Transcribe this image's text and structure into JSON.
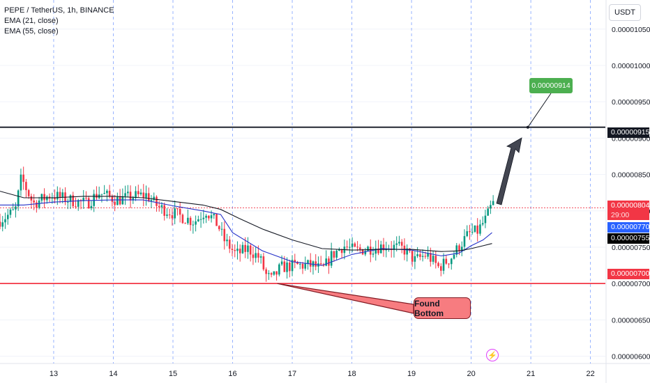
{
  "legend": {
    "symbol": "PEPE / TetherUS, 1h, BINANCE",
    "ema21": "EMA (21, close)",
    "ema55": "EMA (55, close)"
  },
  "currency_button": "USDT",
  "colors": {
    "up": "#089981",
    "down": "#f23645",
    "ema21": "#2632c9",
    "ema55": "#131722",
    "target": "#4caf50",
    "support": "#f23645",
    "resistance": "#131722",
    "grid_vertical": "#2962ff"
  },
  "chart_data": {
    "type": "line",
    "title": "PEPE / TetherUS, 1h, BINANCE",
    "x_ticks": [
      "13",
      "14",
      "15",
      "16",
      "17",
      "18",
      "19",
      "20",
      "21",
      "22"
    ],
    "y_ticks": [
      "0.00001050",
      "0.00001000",
      "0.00000950",
      "0.00000900",
      "0.00000850",
      "0.00000800",
      "0.00000750",
      "0.00000700",
      "0.00000650",
      "0.00000600"
    ],
    "y_tick_values": [
      1.05e-05,
      1e-05,
      9.5e-06,
      9e-06,
      8.5e-06,
      8e-06,
      7.5e-06,
      7e-06,
      6.5e-06,
      6e-06
    ],
    "x_range": [
      12.1,
      22.25
    ],
    "y_range": [
      5.9e-06,
      1.09e-05
    ],
    "price_path": [
      [
        12.1,
        7.85e-06
      ],
      [
        12.4,
        8e-06
      ],
      [
        12.5,
        8.45e-06
      ],
      [
        12.7,
        8.1e-06
      ],
      [
        13.0,
        8.22e-06
      ],
      [
        13.3,
        8.15e-06
      ],
      [
        13.6,
        8.1e-06
      ],
      [
        13.8,
        8.25e-06
      ],
      [
        14.1,
        8.15e-06
      ],
      [
        14.4,
        8.2e-06
      ],
      [
        14.6,
        8.22e-06
      ],
      [
        14.8,
        8.05e-06
      ],
      [
        15.1,
        7.95e-06
      ],
      [
        15.4,
        7.85e-06
      ],
      [
        15.6,
        8e-06
      ],
      [
        15.8,
        7.8e-06
      ],
      [
        15.9,
        7.6e-06
      ],
      [
        16.1,
        7.4e-06
      ],
      [
        16.3,
        7.48e-06
      ],
      [
        16.5,
        7.35e-06
      ],
      [
        16.6,
        7.12e-06
      ],
      [
        16.7,
        7.05e-06
      ],
      [
        16.85,
        7.22e-06
      ],
      [
        17.1,
        7.25e-06
      ],
      [
        17.4,
        7.25e-06
      ],
      [
        17.55,
        7.18e-06
      ],
      [
        17.7,
        7.38e-06
      ],
      [
        17.9,
        7.52e-06
      ],
      [
        18.1,
        7.45e-06
      ],
      [
        18.3,
        7.48e-06
      ],
      [
        18.6,
        7.52e-06
      ],
      [
        18.9,
        7.48e-06
      ],
      [
        19.1,
        7.32e-06
      ],
      [
        19.3,
        7.4e-06
      ],
      [
        19.5,
        7.22e-06
      ],
      [
        19.7,
        7.35e-06
      ],
      [
        19.85,
        7.52e-06
      ],
      [
        20.0,
        7.68e-06
      ],
      [
        20.15,
        7.72e-06
      ],
      [
        20.3,
        7.9e-06
      ],
      [
        20.4,
        8.1e-06
      ]
    ],
    "series": [
      {
        "name": "EMA (21, close)",
        "points": [
          [
            12.1,
            8.08e-06
          ],
          [
            12.5,
            8.08e-06
          ],
          [
            13.0,
            8.12e-06
          ],
          [
            13.5,
            8.14e-06
          ],
          [
            14.0,
            8.15e-06
          ],
          [
            14.5,
            8.15e-06
          ],
          [
            15.0,
            8.07e-06
          ],
          [
            15.5,
            8e-06
          ],
          [
            15.8,
            7.95e-06
          ],
          [
            16.0,
            7.7e-06
          ],
          [
            16.5,
            7.45e-06
          ],
          [
            17.0,
            7.3e-06
          ],
          [
            17.5,
            7.25e-06
          ],
          [
            18.0,
            7.4e-06
          ],
          [
            18.5,
            7.48e-06
          ],
          [
            19.0,
            7.46e-06
          ],
          [
            19.5,
            7.38e-06
          ],
          [
            19.8,
            7.42e-06
          ],
          [
            20.0,
            7.52e-06
          ],
          [
            20.2,
            7.6e-06
          ],
          [
            20.35,
            7.7e-06
          ]
        ]
      },
      {
        "name": "EMA (55, close)",
        "points": [
          [
            12.1,
            8.27e-06
          ],
          [
            12.5,
            8.18e-06
          ],
          [
            13.0,
            8.18e-06
          ],
          [
            13.5,
            8.2e-06
          ],
          [
            14.0,
            8.2e-06
          ],
          [
            14.5,
            8.18e-06
          ],
          [
            15.0,
            8.13e-06
          ],
          [
            15.5,
            8.08e-06
          ],
          [
            15.8,
            8.02e-06
          ],
          [
            16.1,
            7.9e-06
          ],
          [
            16.5,
            7.75e-06
          ],
          [
            17.0,
            7.6e-06
          ],
          [
            17.5,
            7.48e-06
          ],
          [
            18.0,
            7.46e-06
          ],
          [
            18.5,
            7.47e-06
          ],
          [
            19.0,
            7.47e-06
          ],
          [
            19.5,
            7.44e-06
          ],
          [
            19.8,
            7.45e-06
          ],
          [
            20.0,
            7.48e-06
          ],
          [
            20.2,
            7.52e-06
          ],
          [
            20.35,
            7.55e-06
          ]
        ]
      }
    ],
    "price_labels": {
      "current": "0.00000804",
      "countdown": "29:00",
      "ema21": "0.00000770",
      "ema55": "0.00000755",
      "support": "0.00000700",
      "resistance": "0.00000915"
    },
    "current_value": 8.04e-06,
    "ema21_value": 7.7e-06,
    "ema55_value": 7.55e-06,
    "support_value": 7e-06,
    "resistance_value": 9.15e-06,
    "target_value": 9.14e-06,
    "target_label": "0.00000914",
    "bottom_label": "Found Bottom",
    "bottom_point": [
      16.75,
      7e-06
    ],
    "target_point": [
      20.95,
      9.15e-06
    ],
    "grid": true
  }
}
